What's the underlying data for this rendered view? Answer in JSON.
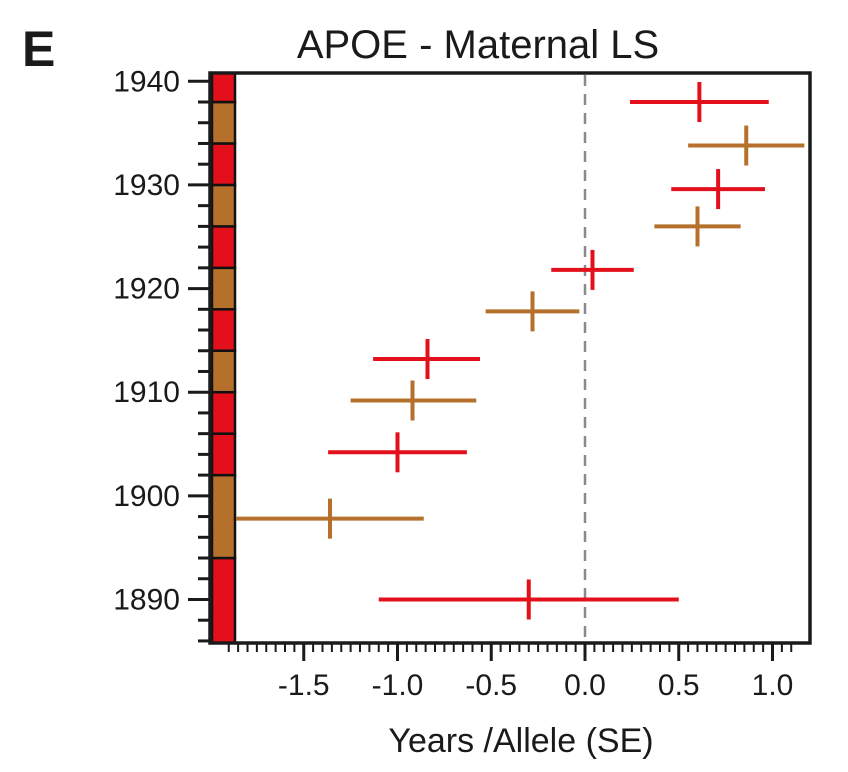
{
  "panel_label": "E",
  "chart_data": {
    "type": "scatter",
    "title": "APOE - Maternal LS",
    "xlabel": "Years /Allele (SE)",
    "ylabel": "",
    "xlim": [
      -2.0,
      1.2
    ],
    "ylim": [
      1885.8,
      1940.8
    ],
    "x_ticks": [
      -1.5,
      -1.0,
      -0.5,
      0.0,
      0.5,
      1.0
    ],
    "x_tick_labels": [
      "-1.5",
      "-1.0",
      "-0.5",
      "0.0",
      "0.5",
      "1.0"
    ],
    "y_ticks": [
      1890,
      1900,
      1910,
      1920,
      1930,
      1940
    ],
    "y_tick_labels": [
      "1890",
      "1900",
      "1910",
      "1920",
      "1930",
      "1940"
    ],
    "reference_line_x": 0.0,
    "colors": {
      "red": "#e3101b",
      "brown": "#b5702c",
      "axis": "#1a1a1a",
      "refline": "#8a8a8a"
    },
    "bands": [
      {
        "from": 1885.8,
        "to": 1894,
        "color": "red"
      },
      {
        "from": 1894,
        "to": 1902,
        "color": "brown"
      },
      {
        "from": 1902,
        "to": 1906,
        "color": "red"
      },
      {
        "from": 1906,
        "to": 1910,
        "color": "red"
      },
      {
        "from": 1910,
        "to": 1914,
        "color": "brown"
      },
      {
        "from": 1914,
        "to": 1918,
        "color": "red"
      },
      {
        "from": 1918,
        "to": 1922,
        "color": "brown"
      },
      {
        "from": 1922,
        "to": 1926,
        "color": "red"
      },
      {
        "from": 1926,
        "to": 1930,
        "color": "brown"
      },
      {
        "from": 1930,
        "to": 1934,
        "color": "red"
      },
      {
        "from": 1934,
        "to": 1938,
        "color": "brown"
      },
      {
        "from": 1938,
        "to": 1940.8,
        "color": "red"
      }
    ],
    "points": [
      {
        "y": 1890,
        "x": -0.3,
        "lo": -1.1,
        "hi": 0.5,
        "color": "red"
      },
      {
        "y": 1897.8,
        "x": -1.36,
        "lo": -1.86,
        "hi": -0.86,
        "color": "brown"
      },
      {
        "y": 1904.2,
        "x": -1.0,
        "lo": -1.37,
        "hi": -0.63,
        "color": "red"
      },
      {
        "y": 1909.2,
        "x": -0.92,
        "lo": -1.25,
        "hi": -0.58,
        "color": "brown"
      },
      {
        "y": 1913.2,
        "x": -0.84,
        "lo": -1.13,
        "hi": -0.56,
        "color": "red"
      },
      {
        "y": 1917.8,
        "x": -0.28,
        "lo": -0.53,
        "hi": -0.03,
        "color": "brown"
      },
      {
        "y": 1921.8,
        "x": 0.04,
        "lo": -0.18,
        "hi": 0.26,
        "color": "red"
      },
      {
        "y": 1926.0,
        "x": 0.6,
        "lo": 0.37,
        "hi": 0.83,
        "color": "brown"
      },
      {
        "y": 1929.6,
        "x": 0.71,
        "lo": 0.46,
        "hi": 0.96,
        "color": "red"
      },
      {
        "y": 1933.8,
        "x": 0.86,
        "lo": 0.55,
        "hi": 1.17,
        "color": "brown"
      },
      {
        "y": 1938.0,
        "x": 0.61,
        "lo": 0.24,
        "hi": 0.98,
        "color": "red"
      }
    ]
  }
}
